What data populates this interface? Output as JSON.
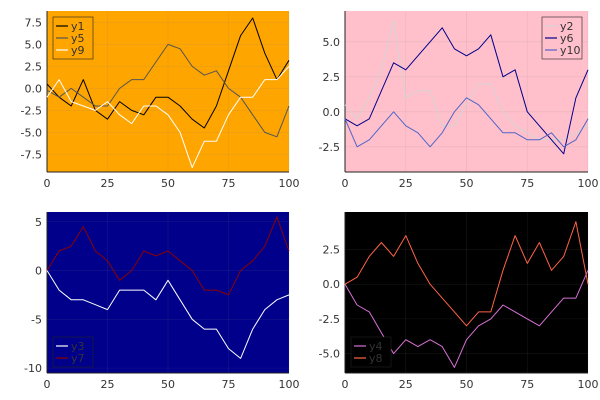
{
  "chart_data": [
    {
      "type": "line",
      "background": "#FFA500",
      "legend_position": "top-left",
      "xlim": [
        0,
        100
      ],
      "ylim": [
        -9.5,
        8.8
      ],
      "xticks": [
        0,
        25,
        50,
        75,
        100
      ],
      "yticks": [
        -7.5,
        -5.0,
        -2.5,
        0.0,
        2.5,
        5.0,
        7.5
      ],
      "ytick_labels": [
        "-7.5",
        "-5.0",
        "-2.5",
        "0.0",
        "2.5",
        "5.0",
        "7.5"
      ],
      "series": [
        {
          "name": "y1",
          "color": "#000000",
          "x": [
            0,
            5,
            10,
            15,
            20,
            25,
            30,
            35,
            40,
            45,
            50,
            55,
            60,
            65,
            70,
            75,
            80,
            85,
            90,
            95,
            100
          ],
          "y": [
            0.5,
            -1,
            -2,
            1,
            -2.5,
            -3.5,
            -1.5,
            -2.5,
            -3,
            -1,
            -1,
            -2,
            -3.5,
            -4.5,
            -2,
            2,
            6,
            8,
            4,
            1,
            3.2
          ]
        },
        {
          "name": "y5",
          "color": "#555555",
          "x": [
            0,
            5,
            10,
            15,
            20,
            25,
            30,
            35,
            40,
            45,
            50,
            55,
            60,
            65,
            70,
            75,
            80,
            85,
            90,
            95,
            100
          ],
          "y": [
            -0.2,
            -1,
            0,
            -1,
            -2,
            -2,
            0,
            1,
            1,
            3,
            5,
            4.5,
            2.5,
            1.5,
            2,
            0,
            -1,
            -3,
            -5,
            -5.5,
            -2
          ]
        },
        {
          "name": "y9",
          "color": "#ffffff",
          "x": [
            0,
            5,
            10,
            15,
            20,
            25,
            30,
            35,
            40,
            45,
            50,
            55,
            60,
            65,
            70,
            75,
            80,
            85,
            90,
            95,
            100
          ],
          "y": [
            -1,
            1,
            -1.5,
            -2,
            -2.5,
            -1.5,
            -3,
            -4,
            -2,
            -2,
            -3,
            -5,
            -9,
            -6,
            -6,
            -3,
            -1,
            -1,
            1,
            1,
            2.5
          ]
        }
      ]
    },
    {
      "type": "line",
      "background": "#FFC0CB",
      "legend_position": "top-right",
      "xlim": [
        0,
        100
      ],
      "ylim": [
        -4.3,
        7.2
      ],
      "xticks": [
        0,
        25,
        50,
        75,
        100
      ],
      "yticks": [
        -2.5,
        0.0,
        2.5,
        5.0
      ],
      "ytick_labels": [
        "-2.5",
        "0.0",
        "2.5",
        "5.0"
      ],
      "series": [
        {
          "name": "y2",
          "color": "#D3D3D3",
          "x": [
            0,
            5,
            10,
            15,
            20,
            25,
            30,
            35,
            40,
            45,
            50,
            55,
            60,
            65,
            70,
            75,
            80,
            85,
            90,
            95,
            100
          ],
          "y": [
            0.5,
            -0.5,
            1,
            3,
            6.5,
            1,
            1.5,
            1.5,
            -1,
            -1,
            0.5,
            2,
            2,
            0,
            -1,
            -1.5,
            -2,
            -2,
            -2,
            -1.5,
            -1
          ]
        },
        {
          "name": "y6",
          "color": "#00008B",
          "x": [
            0,
            5,
            10,
            15,
            20,
            25,
            30,
            35,
            40,
            45,
            50,
            55,
            60,
            65,
            70,
            75,
            80,
            85,
            90,
            95,
            100
          ],
          "y": [
            -0.5,
            -1,
            -0.5,
            1.5,
            3.5,
            3,
            4,
            5,
            6,
            4.5,
            4,
            4.5,
            5.5,
            2.5,
            3,
            0,
            -1,
            -2,
            -3,
            1,
            3
          ]
        },
        {
          "name": "y10",
          "color": "#5064C8",
          "x": [
            0,
            5,
            10,
            15,
            20,
            25,
            30,
            35,
            40,
            45,
            50,
            55,
            60,
            65,
            70,
            75,
            80,
            85,
            90,
            95,
            100
          ],
          "y": [
            -0.5,
            -2.5,
            -2,
            -1,
            0,
            -1,
            -1.5,
            -2.5,
            -1.5,
            0,
            1,
            0.5,
            -0.5,
            -1.5,
            -1.5,
            -2,
            -2,
            -1.5,
            -2.5,
            -2,
            -0.5
          ]
        }
      ]
    },
    {
      "type": "line",
      "background": "#00008B",
      "legend_position": "bottom-left",
      "xlim": [
        0,
        100
      ],
      "ylim": [
        -10.5,
        6
      ],
      "xticks": [
        0,
        25,
        50,
        75,
        100
      ],
      "yticks": [
        -10,
        -5,
        0,
        5
      ],
      "ytick_labels": [
        "-10",
        "-5",
        "0",
        "5"
      ],
      "series": [
        {
          "name": "y3",
          "color": "#ffffff",
          "x": [
            0,
            5,
            10,
            15,
            20,
            25,
            30,
            35,
            40,
            45,
            50,
            55,
            60,
            65,
            70,
            75,
            80,
            85,
            90,
            95,
            100
          ],
          "y": [
            0,
            -2,
            -3,
            -3,
            -3.5,
            -4,
            -2,
            -2,
            -2,
            -3,
            -1,
            -3,
            -5,
            -6,
            -6,
            -8,
            -9,
            -6,
            -4,
            -3,
            -2.5
          ]
        },
        {
          "name": "y7",
          "color": "#8B0000",
          "x": [
            0,
            5,
            10,
            15,
            20,
            25,
            30,
            35,
            40,
            45,
            50,
            55,
            60,
            65,
            70,
            75,
            80,
            85,
            90,
            95,
            100
          ],
          "y": [
            0,
            2,
            2.5,
            4.5,
            2,
            1,
            -1,
            0,
            2,
            1.5,
            2,
            1,
            0,
            -2,
            -2,
            -2.5,
            0,
            1,
            2.5,
            5.5,
            2
          ]
        }
      ]
    },
    {
      "type": "line",
      "background": "#000000",
      "legend_position": "bottom-left",
      "xlim": [
        0,
        100
      ],
      "ylim": [
        -6.4,
        5.2
      ],
      "xticks": [
        0,
        25,
        50,
        75,
        100
      ],
      "yticks": [
        -5.0,
        -2.5,
        0.0,
        2.5
      ],
      "ytick_labels": [
        "-5.0",
        "-2.5",
        "0.0",
        "2.5"
      ],
      "series": [
        {
          "name": "y4",
          "color": "#DA70D6",
          "x": [
            0,
            5,
            10,
            15,
            20,
            25,
            30,
            35,
            40,
            45,
            50,
            55,
            60,
            65,
            70,
            75,
            80,
            85,
            90,
            95,
            100
          ],
          "y": [
            0,
            -1.5,
            -2,
            -3.5,
            -5,
            -4,
            -4.5,
            -4,
            -4.5,
            -6,
            -4,
            -3,
            -2.5,
            -1.5,
            -2,
            -2.5,
            -3,
            -2,
            -1,
            -1,
            1
          ]
        },
        {
          "name": "y8",
          "color": "#FF6347",
          "x": [
            0,
            5,
            10,
            15,
            20,
            25,
            30,
            35,
            40,
            45,
            50,
            55,
            60,
            65,
            70,
            75,
            80,
            85,
            90,
            95,
            100
          ],
          "y": [
            0,
            0.5,
            2,
            3,
            2,
            3.5,
            1.5,
            0,
            -1,
            -2,
            -3,
            -2,
            -2,
            1,
            3.5,
            1.5,
            3,
            1,
            2,
            4.5,
            0
          ]
        }
      ]
    }
  ]
}
